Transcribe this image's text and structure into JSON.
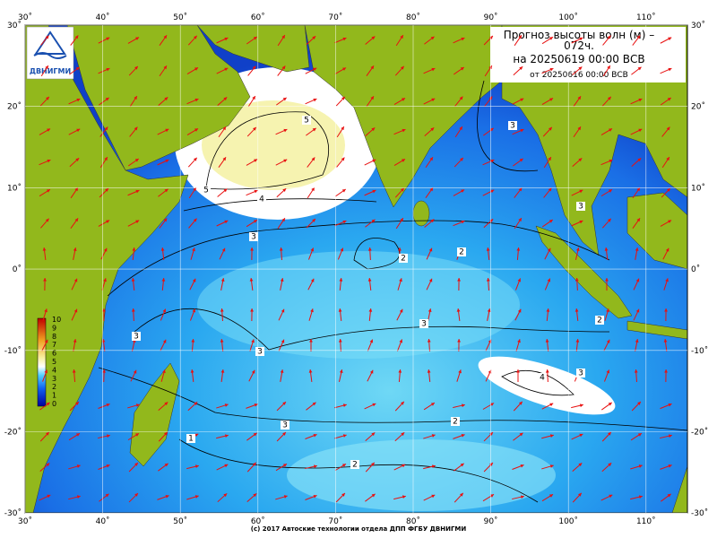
{
  "header": {
    "title_line1": "Прогноз высоты волн (м) –",
    "title_line2": "072ч.",
    "title_line3": "на 20250619 00:00 ВСВ",
    "subtitle": "от 20250616 00:00 ВСВ"
  },
  "logo": {
    "text": "ДВНИГМИ"
  },
  "lon_labels": [
    "30˚",
    "40˚",
    "50˚",
    "60˚",
    "70˚",
    "80˚",
    "90˚",
    "100˚",
    "110˚"
  ],
  "lat_labels": [
    "30˚",
    "20˚",
    "10˚",
    "0˚",
    "-10˚",
    "-20˚",
    "-30˚"
  ],
  "colorbar": {
    "labels": [
      "10",
      "9",
      "8",
      "7",
      "6",
      "5",
      "4",
      "3",
      "2",
      "1",
      "0"
    ]
  },
  "contour_labels": [
    "5",
    "5",
    "4",
    "3",
    "2",
    "2",
    "3",
    "3",
    "3",
    "4",
    "3",
    "3",
    "2",
    "2",
    "1",
    "2",
    "3",
    "3"
  ],
  "footer": "(c) 2017 Автоские технологии отдела ДПП ФГБУ ДВНИГМИ"
}
